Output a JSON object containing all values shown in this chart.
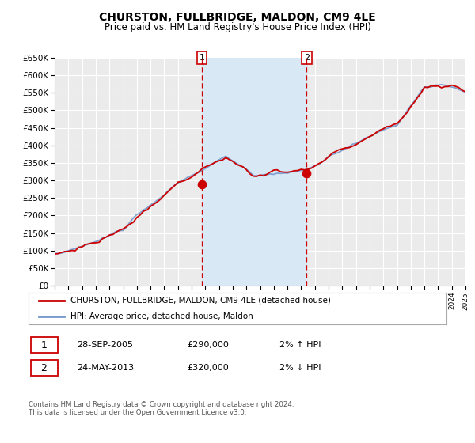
{
  "title": "CHURSTON, FULLBRIDGE, MALDON, CM9 4LE",
  "subtitle": "Price paid vs. HM Land Registry's House Price Index (HPI)",
  "legend_line1": "CHURSTON, FULLBRIDGE, MALDON, CM9 4LE (detached house)",
  "legend_line2": "HPI: Average price, detached house, Maldon",
  "marker1_date": "28-SEP-2005",
  "marker1_price": 290000,
  "marker1_hpi": "2% ↑ HPI",
  "marker1_x": 2005.75,
  "marker2_date": "24-MAY-2013",
  "marker2_price": 320000,
  "marker2_hpi": "2% ↓ HPI",
  "marker2_x": 2013.4,
  "xmin": 1995,
  "xmax": 2025,
  "ymin": 0,
  "ymax": 650000,
  "yticks": [
    0,
    50000,
    100000,
    150000,
    200000,
    250000,
    300000,
    350000,
    400000,
    450000,
    500000,
    550000,
    600000,
    650000
  ],
  "background_color": "#ffffff",
  "plot_bg_color": "#ebebeb",
  "grid_color": "#ffffff",
  "hpi_color": "#7799cc",
  "price_color": "#cc0000",
  "shade_color": "#d8e8f5",
  "footer": "Contains HM Land Registry data © Crown copyright and database right 2024.\nThis data is licensed under the Open Government Licence v3.0."
}
